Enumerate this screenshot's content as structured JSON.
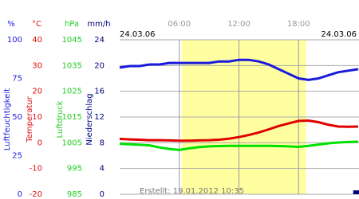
{
  "chart_data": {
    "type": "line",
    "date_left": "24.03.06",
    "date_right": "24.03.06",
    "footer": "Erstellt: 19.01.2012 10:35",
    "x": [
      0,
      1,
      2,
      3,
      4,
      5,
      6,
      7,
      8,
      9,
      10,
      11,
      12,
      13,
      14,
      15,
      16,
      17,
      18,
      19,
      20,
      21,
      22,
      23,
      24
    ],
    "xlim": [
      0,
      24
    ],
    "xticks": [
      {
        "value": 6,
        "label": "06:00"
      },
      {
        "value": 12,
        "label": "12:00"
      },
      {
        "value": 18,
        "label": "18:00"
      }
    ],
    "daylight": [
      6.25,
      18.75
    ],
    "axes": [
      {
        "unit": "%",
        "label": "Luftfeuchtigkeit",
        "color": "#2020e0",
        "lim": [
          0,
          100
        ],
        "ticks": [
          0,
          25,
          50,
          75,
          100
        ]
      },
      {
        "unit": "°C",
        "label": "Temperatur",
        "color": "#e01010",
        "lim": [
          -20,
          40
        ],
        "ticks": [
          -20,
          -10,
          0,
          10,
          20,
          30,
          40
        ]
      },
      {
        "unit": "hPa",
        "label": "Luftdruck",
        "color": "#22cc22",
        "lim": [
          985,
          1045
        ],
        "ticks": [
          985,
          995,
          1005,
          1015,
          1025,
          1035,
          1045
        ]
      },
      {
        "unit": "mm/h",
        "label": "Niederschlag",
        "color": "#000080",
        "lim": [
          0,
          24
        ],
        "ticks": [
          0,
          4,
          8,
          12,
          16,
          20,
          24
        ]
      }
    ],
    "grid_axis": 3,
    "series": [
      {
        "kind": "line",
        "axis": 0,
        "color": "#1a1adc",
        "values": [
          82,
          83,
          83,
          84,
          84,
          85,
          85,
          85,
          85,
          85,
          86,
          86,
          87,
          87,
          86,
          84,
          81,
          78,
          75,
          74,
          75,
          77,
          79,
          80,
          81
        ]
      },
      {
        "kind": "line",
        "axis": 1,
        "color": "#e00000",
        "values": [
          1.5,
          1.3,
          1.2,
          1.0,
          1.0,
          0.9,
          0.8,
          0.8,
          0.9,
          1.0,
          1.2,
          1.6,
          2.2,
          3.0,
          4.0,
          5.2,
          6.5,
          7.5,
          8.5,
          8.6,
          8.0,
          7.0,
          6.3,
          6.2,
          6.3
        ]
      },
      {
        "kind": "line",
        "axis": 2,
        "color": "#00e000",
        "values": [
          1004.6,
          1004.4,
          1004.2,
          1004.0,
          1003.2,
          1002.6,
          1002.2,
          1002.8,
          1003.3,
          1003.6,
          1003.7,
          1003.8,
          1003.8,
          1003.8,
          1003.8,
          1003.8,
          1003.7,
          1003.6,
          1003.4,
          1003.8,
          1004.3,
          1004.8,
          1005.1,
          1005.3,
          1005.4
        ]
      },
      {
        "kind": "bar",
        "axis": 3,
        "color": "#000080",
        "values": [
          0,
          0,
          0,
          0,
          0,
          0,
          0,
          0,
          0,
          0,
          0,
          0,
          0,
          0,
          0,
          0,
          0,
          0,
          0,
          0,
          0,
          0,
          0,
          0,
          0.6
        ]
      }
    ]
  }
}
